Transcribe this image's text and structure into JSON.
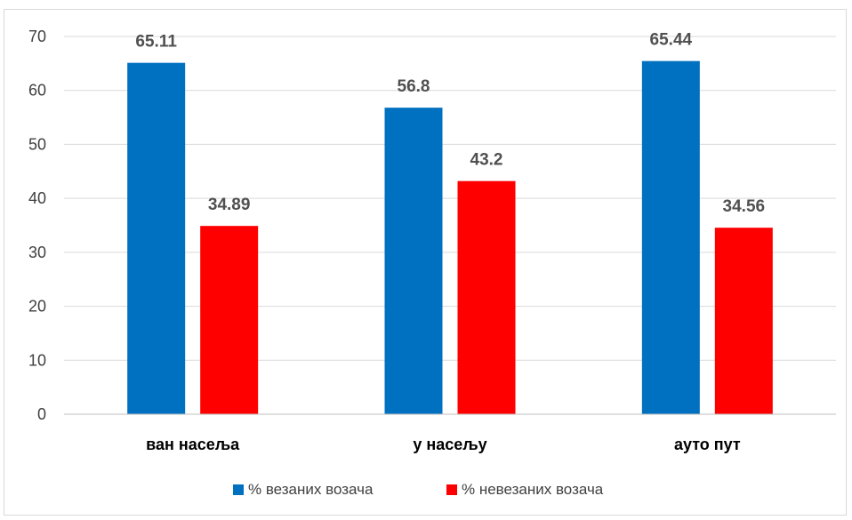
{
  "chart_data": {
    "type": "bar",
    "categories": [
      "ван насеља",
      "у насељу",
      "ауто пут"
    ],
    "series": [
      {
        "name": "% везаних возача",
        "values": [
          65.11,
          56.8,
          65.44
        ],
        "color": "#0070c0"
      },
      {
        "name": "% невезаних возача",
        "values": [
          34.89,
          43.2,
          34.56
        ],
        "color": "#ff0000"
      }
    ],
    "data_labels": [
      [
        "65.11",
        "56.8",
        "65.44"
      ],
      [
        "34.89",
        "43.2",
        "34.56"
      ]
    ],
    "yticks": [
      "0",
      "10",
      "20",
      "30",
      "40",
      "50",
      "60",
      "70"
    ],
    "ylim": [
      0,
      70
    ],
    "grid": true,
    "legend": "bottom"
  }
}
